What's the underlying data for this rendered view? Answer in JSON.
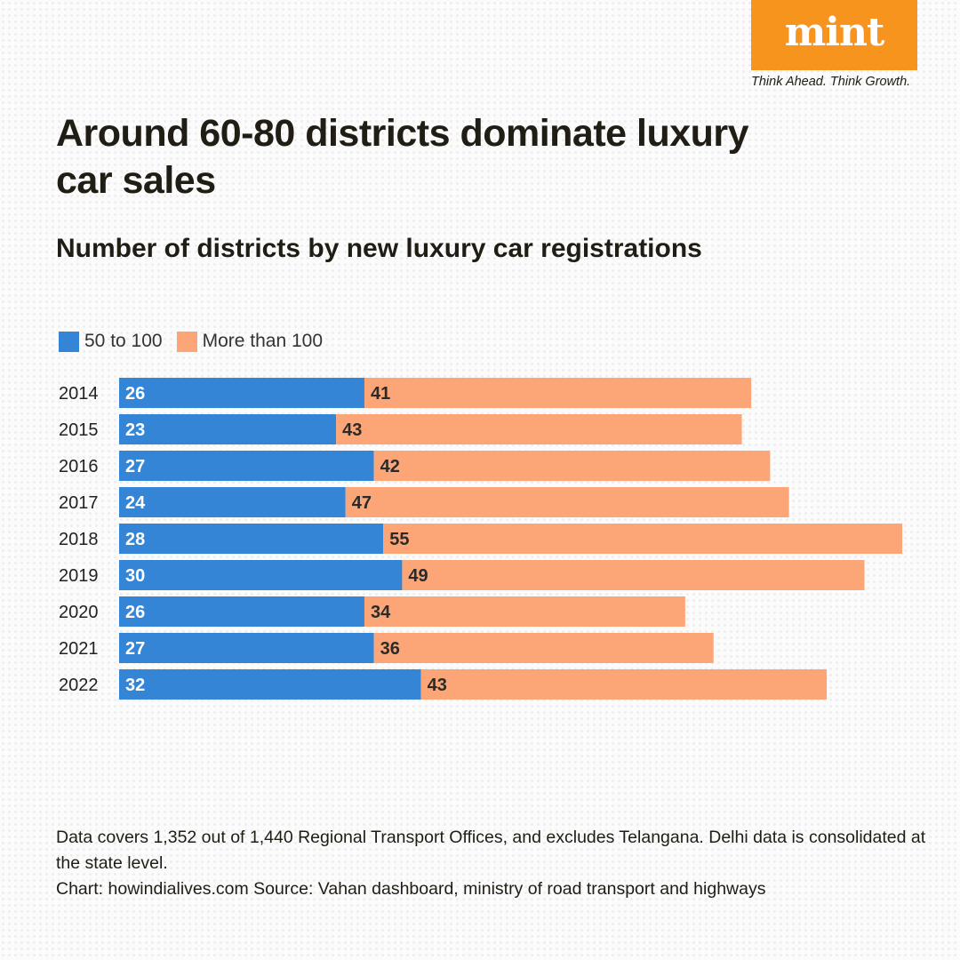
{
  "brand": {
    "name": "mint",
    "tagline": "Think Ahead. Think Growth."
  },
  "colors": {
    "brand": "#f7941d",
    "series_a": "#3585d6",
    "series_b": "#fca677",
    "text": "#1f1d14"
  },
  "chart_data": {
    "type": "bar",
    "orientation": "horizontal",
    "stacked": true,
    "title": "Around 60-80 districts dominate luxury car sales",
    "subtitle": "Number of districts by new luxury car registrations",
    "categories": [
      "2014",
      "2015",
      "2016",
      "2017",
      "2018",
      "2019",
      "2020",
      "2021",
      "2022"
    ],
    "series": [
      {
        "name": "50 to 100",
        "color": "#3585d6",
        "values": [
          26,
          23,
          27,
          24,
          28,
          30,
          26,
          27,
          32
        ]
      },
      {
        "name": "More than 100",
        "color": "#fca677",
        "values": [
          41,
          43,
          42,
          47,
          55,
          49,
          34,
          36,
          43
        ]
      }
    ],
    "xlim": [
      0,
      83
    ],
    "grid": false,
    "legend_position": "top-left",
    "data_labels": true
  },
  "footer": {
    "note": "Data covers 1,352 out of 1,440 Regional Transport Offices, and excludes Telangana. Delhi data is consolidated at the state level.",
    "credit": "Chart: howindialives.com  Source: Vahan dashboard, ministry of road transport and highways"
  }
}
